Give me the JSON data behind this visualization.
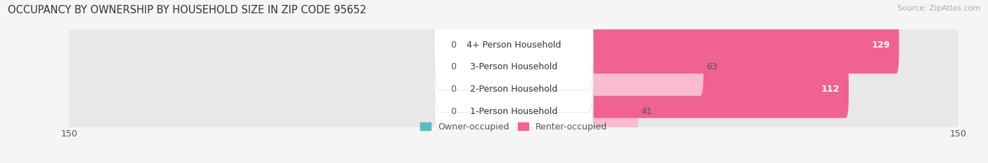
{
  "title": "OCCUPANCY BY OWNERSHIP BY HOUSEHOLD SIZE IN ZIP CODE 95652",
  "source": "Source: ZipAtlas.com",
  "categories": [
    "1-Person Household",
    "2-Person Household",
    "3-Person Household",
    "4+ Person Household"
  ],
  "owner_values": [
    0,
    0,
    0,
    0
  ],
  "renter_values": [
    41,
    112,
    63,
    129
  ],
  "owner_color": "#5bbcbf",
  "renter_color": "#f06292",
  "renter_color_light": "#f8bbd0",
  "renter_color_dark": "#f06292",
  "bg_color": "#f5f5f5",
  "bar_bg_color": "#e8e8e8",
  "axis_limit": 150,
  "owner_stub": 18,
  "owner_label": "Owner-occupied",
  "renter_label": "Renter-occupied",
  "title_fontsize": 10.5,
  "source_fontsize": 8,
  "label_fontsize": 9,
  "tick_fontsize": 9,
  "figsize": [
    14.06,
    2.33
  ],
  "dpi": 100
}
